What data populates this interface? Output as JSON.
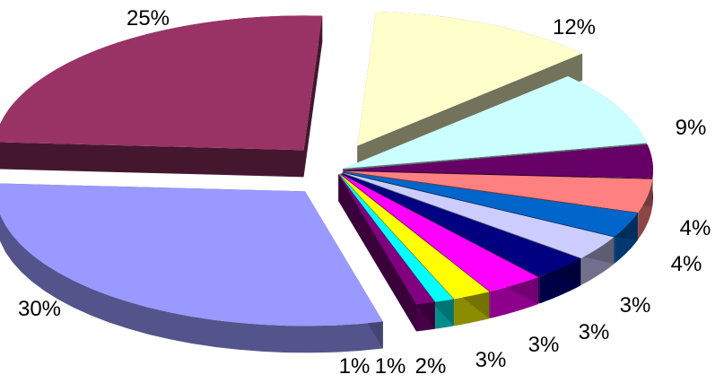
{
  "chart_data": {
    "type": "pie",
    "title": "",
    "slices": [
      {
        "label": "12%",
        "value": 12,
        "color": "#ffffcc"
      },
      {
        "label": "9%",
        "value": 9,
        "color": "#ccffff"
      },
      {
        "label": "4%",
        "value": 4,
        "color": "#660066"
      },
      {
        "label": "4%",
        "value": 4,
        "color": "#ff8080"
      },
      {
        "label": "3%",
        "value": 3,
        "color": "#0066cc"
      },
      {
        "label": "3%",
        "value": 3,
        "color": "#ccccff"
      },
      {
        "label": "3%",
        "value": 3,
        "color": "#000080"
      },
      {
        "label": "3%",
        "value": 3,
        "color": "#ff00ff"
      },
      {
        "label": "2%",
        "value": 2,
        "color": "#ffff00"
      },
      {
        "label": "1%",
        "value": 1,
        "color": "#00ffff"
      },
      {
        "label": "1%",
        "value": 1,
        "color": "#800080"
      },
      {
        "label": "30%",
        "value": 30,
        "color": "#9999ff"
      },
      {
        "label": "25%",
        "value": 25,
        "color": "#993366"
      }
    ],
    "style": "3d-exploded"
  }
}
